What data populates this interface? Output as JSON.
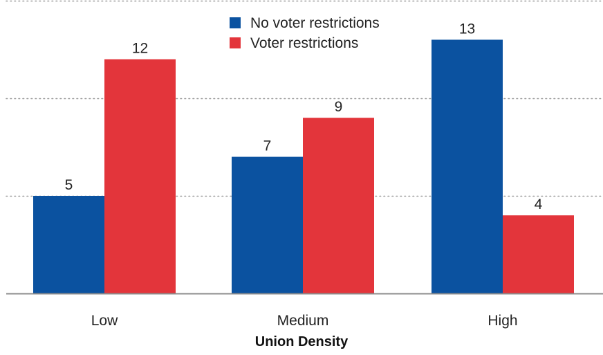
{
  "chart_data": {
    "type": "bar",
    "categories": [
      "Low",
      "Medium",
      "High"
    ],
    "series": [
      {
        "name": "No voter restrictions",
        "values": [
          5,
          7,
          13
        ],
        "color": "#0b52a0"
      },
      {
        "name": "Voter restrictions",
        "values": [
          12,
          9,
          4
        ],
        "color": "#e3353b"
      }
    ],
    "title": "",
    "xlabel": "Union Density",
    "ylabel": "",
    "ylim": [
      0,
      15
    ],
    "gridlines": [
      5,
      10,
      15
    ],
    "grid": true,
    "legend": "top-center",
    "data_labels": true
  }
}
